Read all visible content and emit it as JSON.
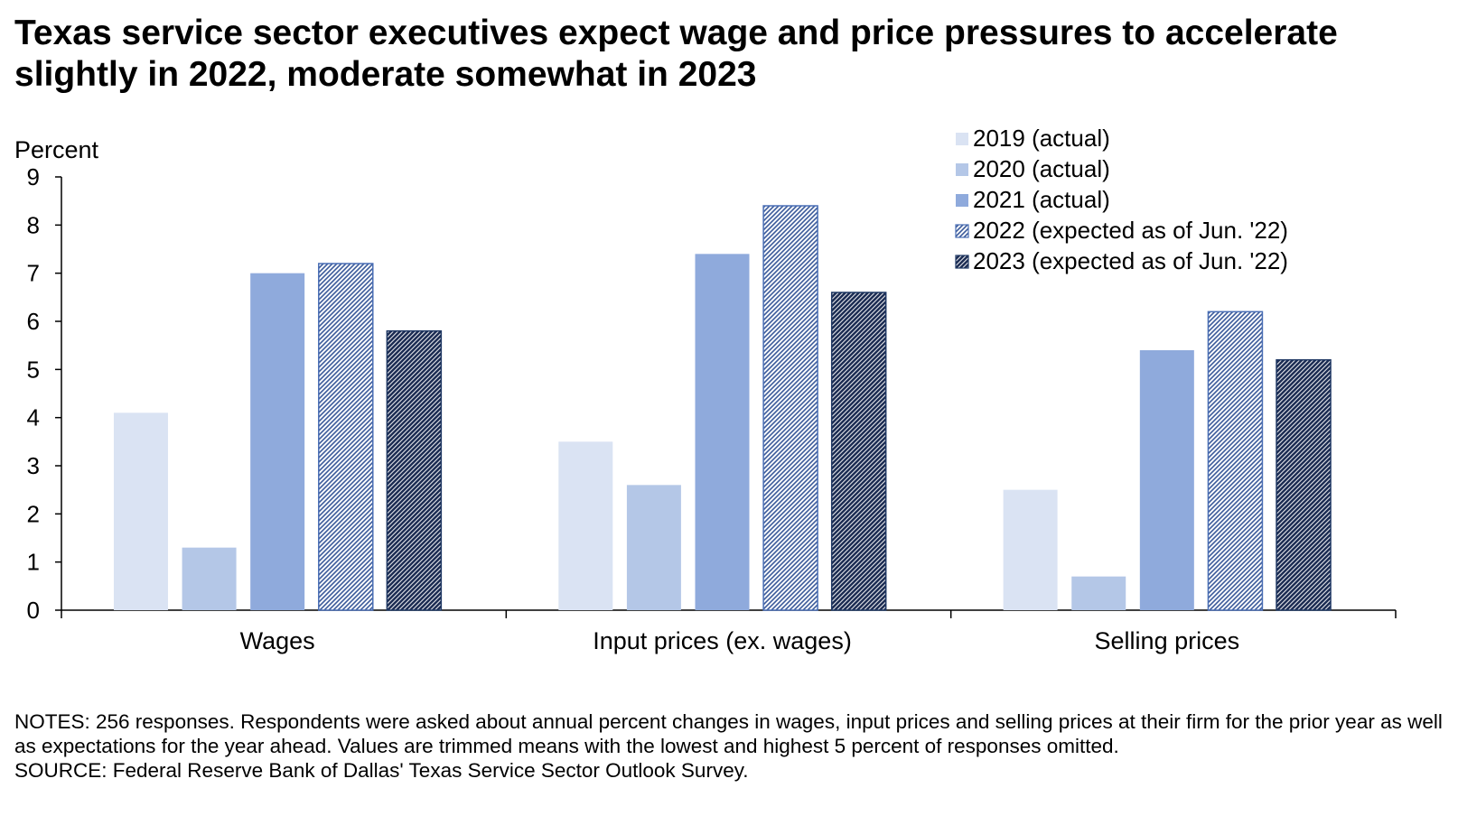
{
  "title": "Texas service sector executives expect wage and price pressures to accelerate slightly in 2022, moderate somewhat in 2023",
  "notes": "NOTES: 256 responses. Respondents were asked about annual percent changes in wages, input prices and selling prices at their firm for the prior year as well as expectations for the year ahead. Values are trimmed means with the lowest and highest 5 percent of responses omitted.",
  "source": "SOURCE: Federal Reserve Bank of Dallas' Texas Service Sector Outlook Survey.",
  "chart_data": {
    "type": "bar",
    "ylabel": "Percent",
    "ylim": [
      0,
      9
    ],
    "yticks": [
      "0",
      "1",
      "2",
      "3",
      "4",
      "5",
      "6",
      "7",
      "8",
      "9"
    ],
    "grid": false,
    "legend_position": "top-right",
    "categories": [
      "Wages",
      "Input prices (ex. wages)",
      "Selling prices"
    ],
    "series": [
      {
        "name": "2019 (actual)",
        "values": [
          4.1,
          3.5,
          2.5
        ],
        "color": "#dae3f3",
        "pattern": "solid"
      },
      {
        "name": "2020 (actual)",
        "values": [
          1.3,
          2.6,
          0.7
        ],
        "color": "#b4c7e7",
        "pattern": "solid"
      },
      {
        "name": "2021 (actual)",
        "values": [
          7.0,
          7.4,
          5.4
        ],
        "color": "#8faadc",
        "pattern": "solid"
      },
      {
        "name": "2022 (expected as of Jun. '22)",
        "values": [
          7.2,
          8.4,
          6.2
        ],
        "color": "#4a6fb5",
        "pattern": "light-diagonal"
      },
      {
        "name": "2023 (expected as of Jun. '22)",
        "values": [
          5.8,
          6.6,
          5.2
        ],
        "color": "#1f3864",
        "pattern": "dark-diagonal"
      }
    ]
  }
}
